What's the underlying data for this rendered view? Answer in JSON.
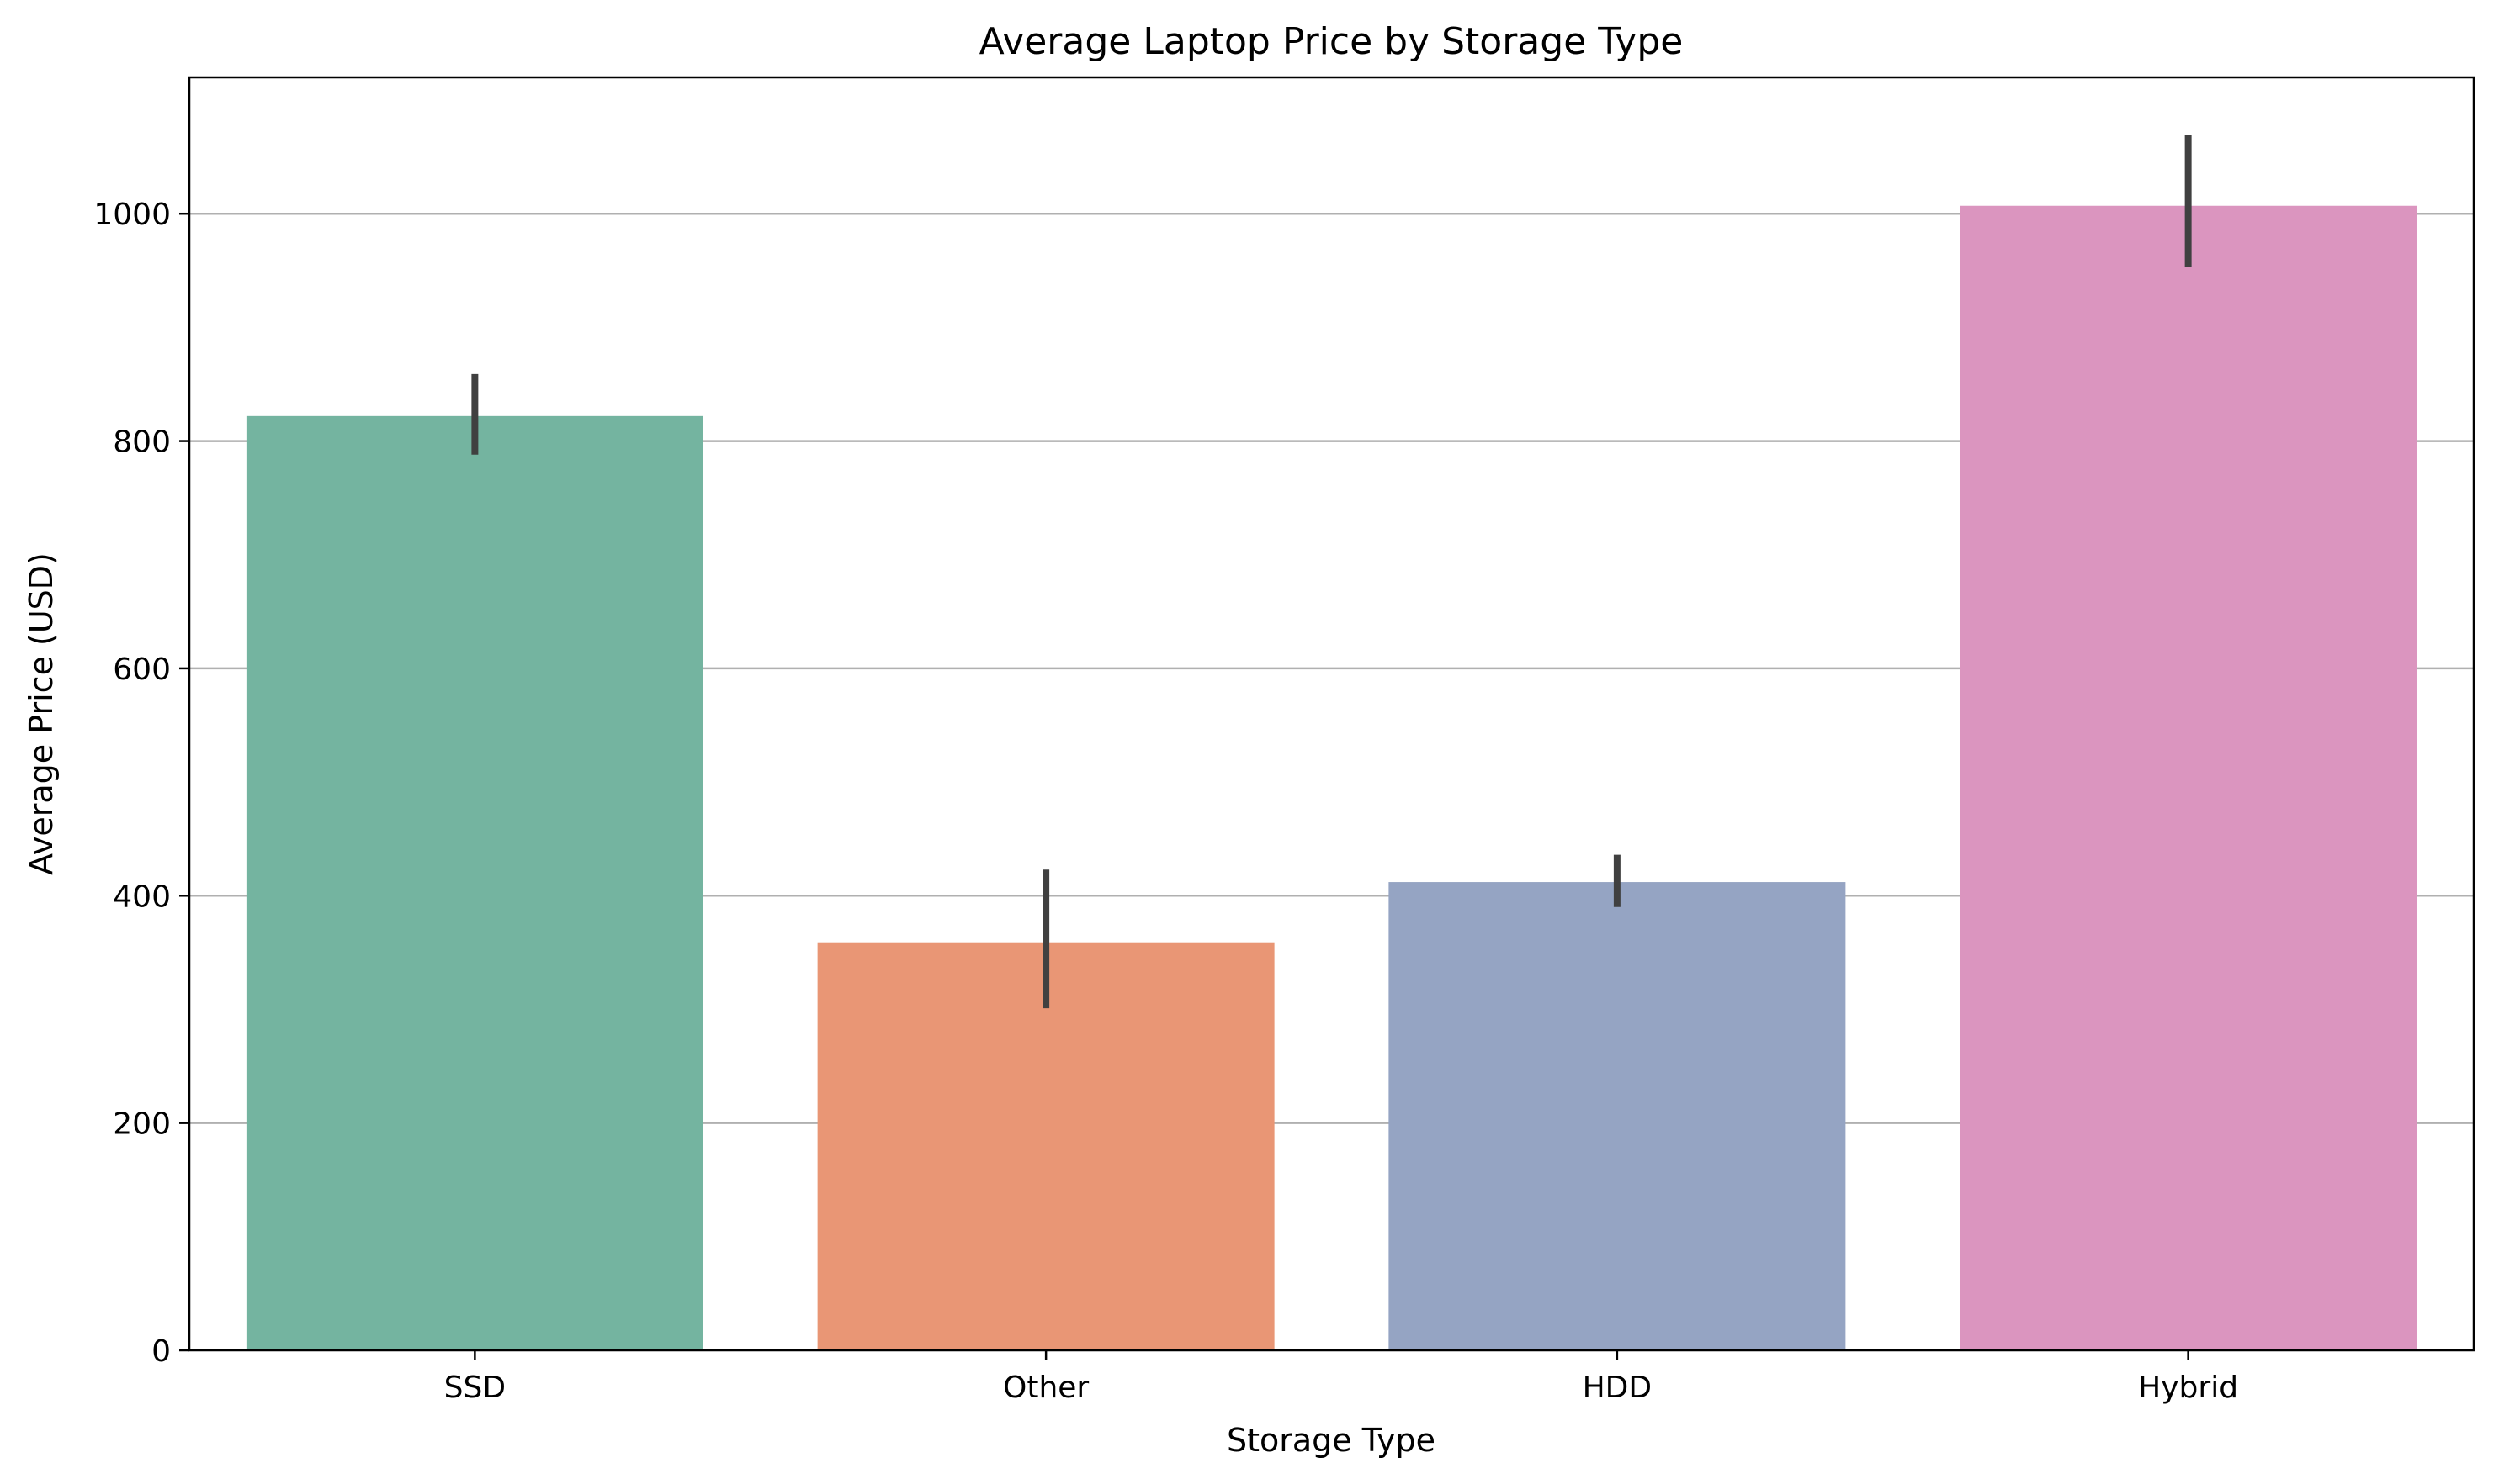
{
  "chart_data": {
    "type": "bar",
    "title": "Average Laptop Price by Storage Type",
    "xlabel": "Storage Type",
    "ylabel": "Average Price (USD)",
    "categories": [
      "SSD",
      "Other",
      "HDD",
      "Hybrid"
    ],
    "values": [
      822,
      359,
      412,
      1007
    ],
    "error_bars": [
      {
        "low": 788,
        "high": 859
      },
      {
        "low": 301,
        "high": 423
      },
      {
        "low": 390,
        "high": 436
      },
      {
        "low": 953,
        "high": 1069
      }
    ],
    "colors": [
      "#74b4a0",
      "#e99675",
      "#95a4c3",
      "#db95bf"
    ],
    "error_bar_color": "#404040",
    "ylim": [
      0,
      1120
    ],
    "yticks": [
      0,
      200,
      400,
      600,
      800,
      1000
    ],
    "grid": "y",
    "legend": "none"
  }
}
